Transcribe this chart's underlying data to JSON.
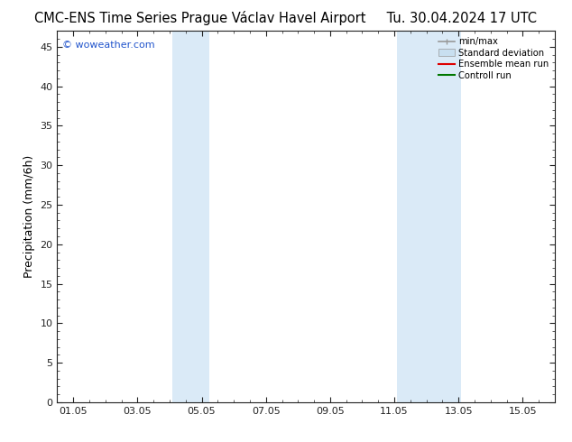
{
  "title_left": "CMC-ENS Time Series Prague Václav Havel Airport",
  "title_right": "Tu. 30.04.2024 17 UTC",
  "ylabel": "Precipitation (mm/6h)",
  "watermark": "© woweather.com",
  "bg_color": "#ffffff",
  "plot_bg_color": "#ffffff",
  "shaded_bands": [
    {
      "x_start": 4.08,
      "x_end": 5.25,
      "color": "#daeaf7"
    },
    {
      "x_start": 11.08,
      "x_end": 13.08,
      "color": "#daeaf7"
    }
  ],
  "x_ticks": [
    1,
    3,
    5,
    7,
    9,
    11,
    13,
    15
  ],
  "x_tick_labels": [
    "01.05",
    "03.05",
    "05.05",
    "07.05",
    "09.05",
    "11.05",
    "13.05",
    "15.05"
  ],
  "xlim": [
    0.5,
    16.0
  ],
  "ylim": [
    0,
    47
  ],
  "y_ticks": [
    0,
    5,
    10,
    15,
    20,
    25,
    30,
    35,
    40,
    45
  ],
  "legend_items": [
    {
      "label": "min/max",
      "color": "#999999",
      "lw": 1.2,
      "style": "minmax"
    },
    {
      "label": "Standard deviation",
      "color": "#c8dff0",
      "lw": 8,
      "style": "band"
    },
    {
      "label": "Ensemble mean run",
      "color": "#dd0000",
      "lw": 1.5,
      "style": "line"
    },
    {
      "label": "Controll run",
      "color": "#007700",
      "lw": 1.5,
      "style": "line"
    }
  ],
  "title_fontsize": 10.5,
  "tick_fontsize": 8,
  "ylabel_fontsize": 9,
  "watermark_color": "#2255cc",
  "spine_color": "#222222"
}
